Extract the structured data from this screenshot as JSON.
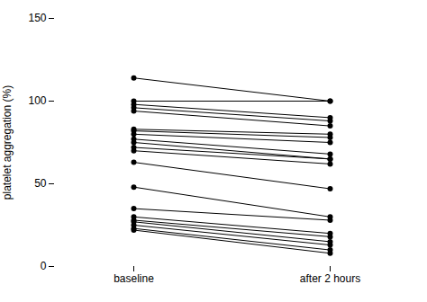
{
  "chart_data": {
    "type": "line",
    "ylabel": "platelet aggregation (%)",
    "categories": [
      "baseline",
      "after 2 hours"
    ],
    "color": "#000000",
    "marker": "circle",
    "grid": false,
    "ylim": [
      0,
      150
    ],
    "yticks": [
      0,
      50,
      100,
      150
    ],
    "series": [
      {
        "values": [
          114,
          100
        ]
      },
      {
        "values": [
          100,
          100
        ]
      },
      {
        "values": [
          98,
          90
        ]
      },
      {
        "values": [
          96,
          88
        ]
      },
      {
        "values": [
          94,
          85
        ]
      },
      {
        "values": [
          83,
          80
        ]
      },
      {
        "values": [
          82,
          78
        ]
      },
      {
        "values": [
          80,
          75
        ]
      },
      {
        "values": [
          77,
          68
        ]
      },
      {
        "values": [
          75,
          65
        ]
      },
      {
        "values": [
          72,
          65
        ]
      },
      {
        "values": [
          70,
          62
        ]
      },
      {
        "values": [
          63,
          47
        ]
      },
      {
        "values": [
          48,
          30
        ]
      },
      {
        "values": [
          35,
          28
        ]
      },
      {
        "values": [
          30,
          20
        ]
      },
      {
        "values": [
          28,
          18
        ]
      },
      {
        "values": [
          27,
          15
        ]
      },
      {
        "values": [
          25,
          13
        ]
      },
      {
        "values": [
          23,
          10
        ]
      },
      {
        "values": [
          22,
          8
        ]
      }
    ]
  }
}
